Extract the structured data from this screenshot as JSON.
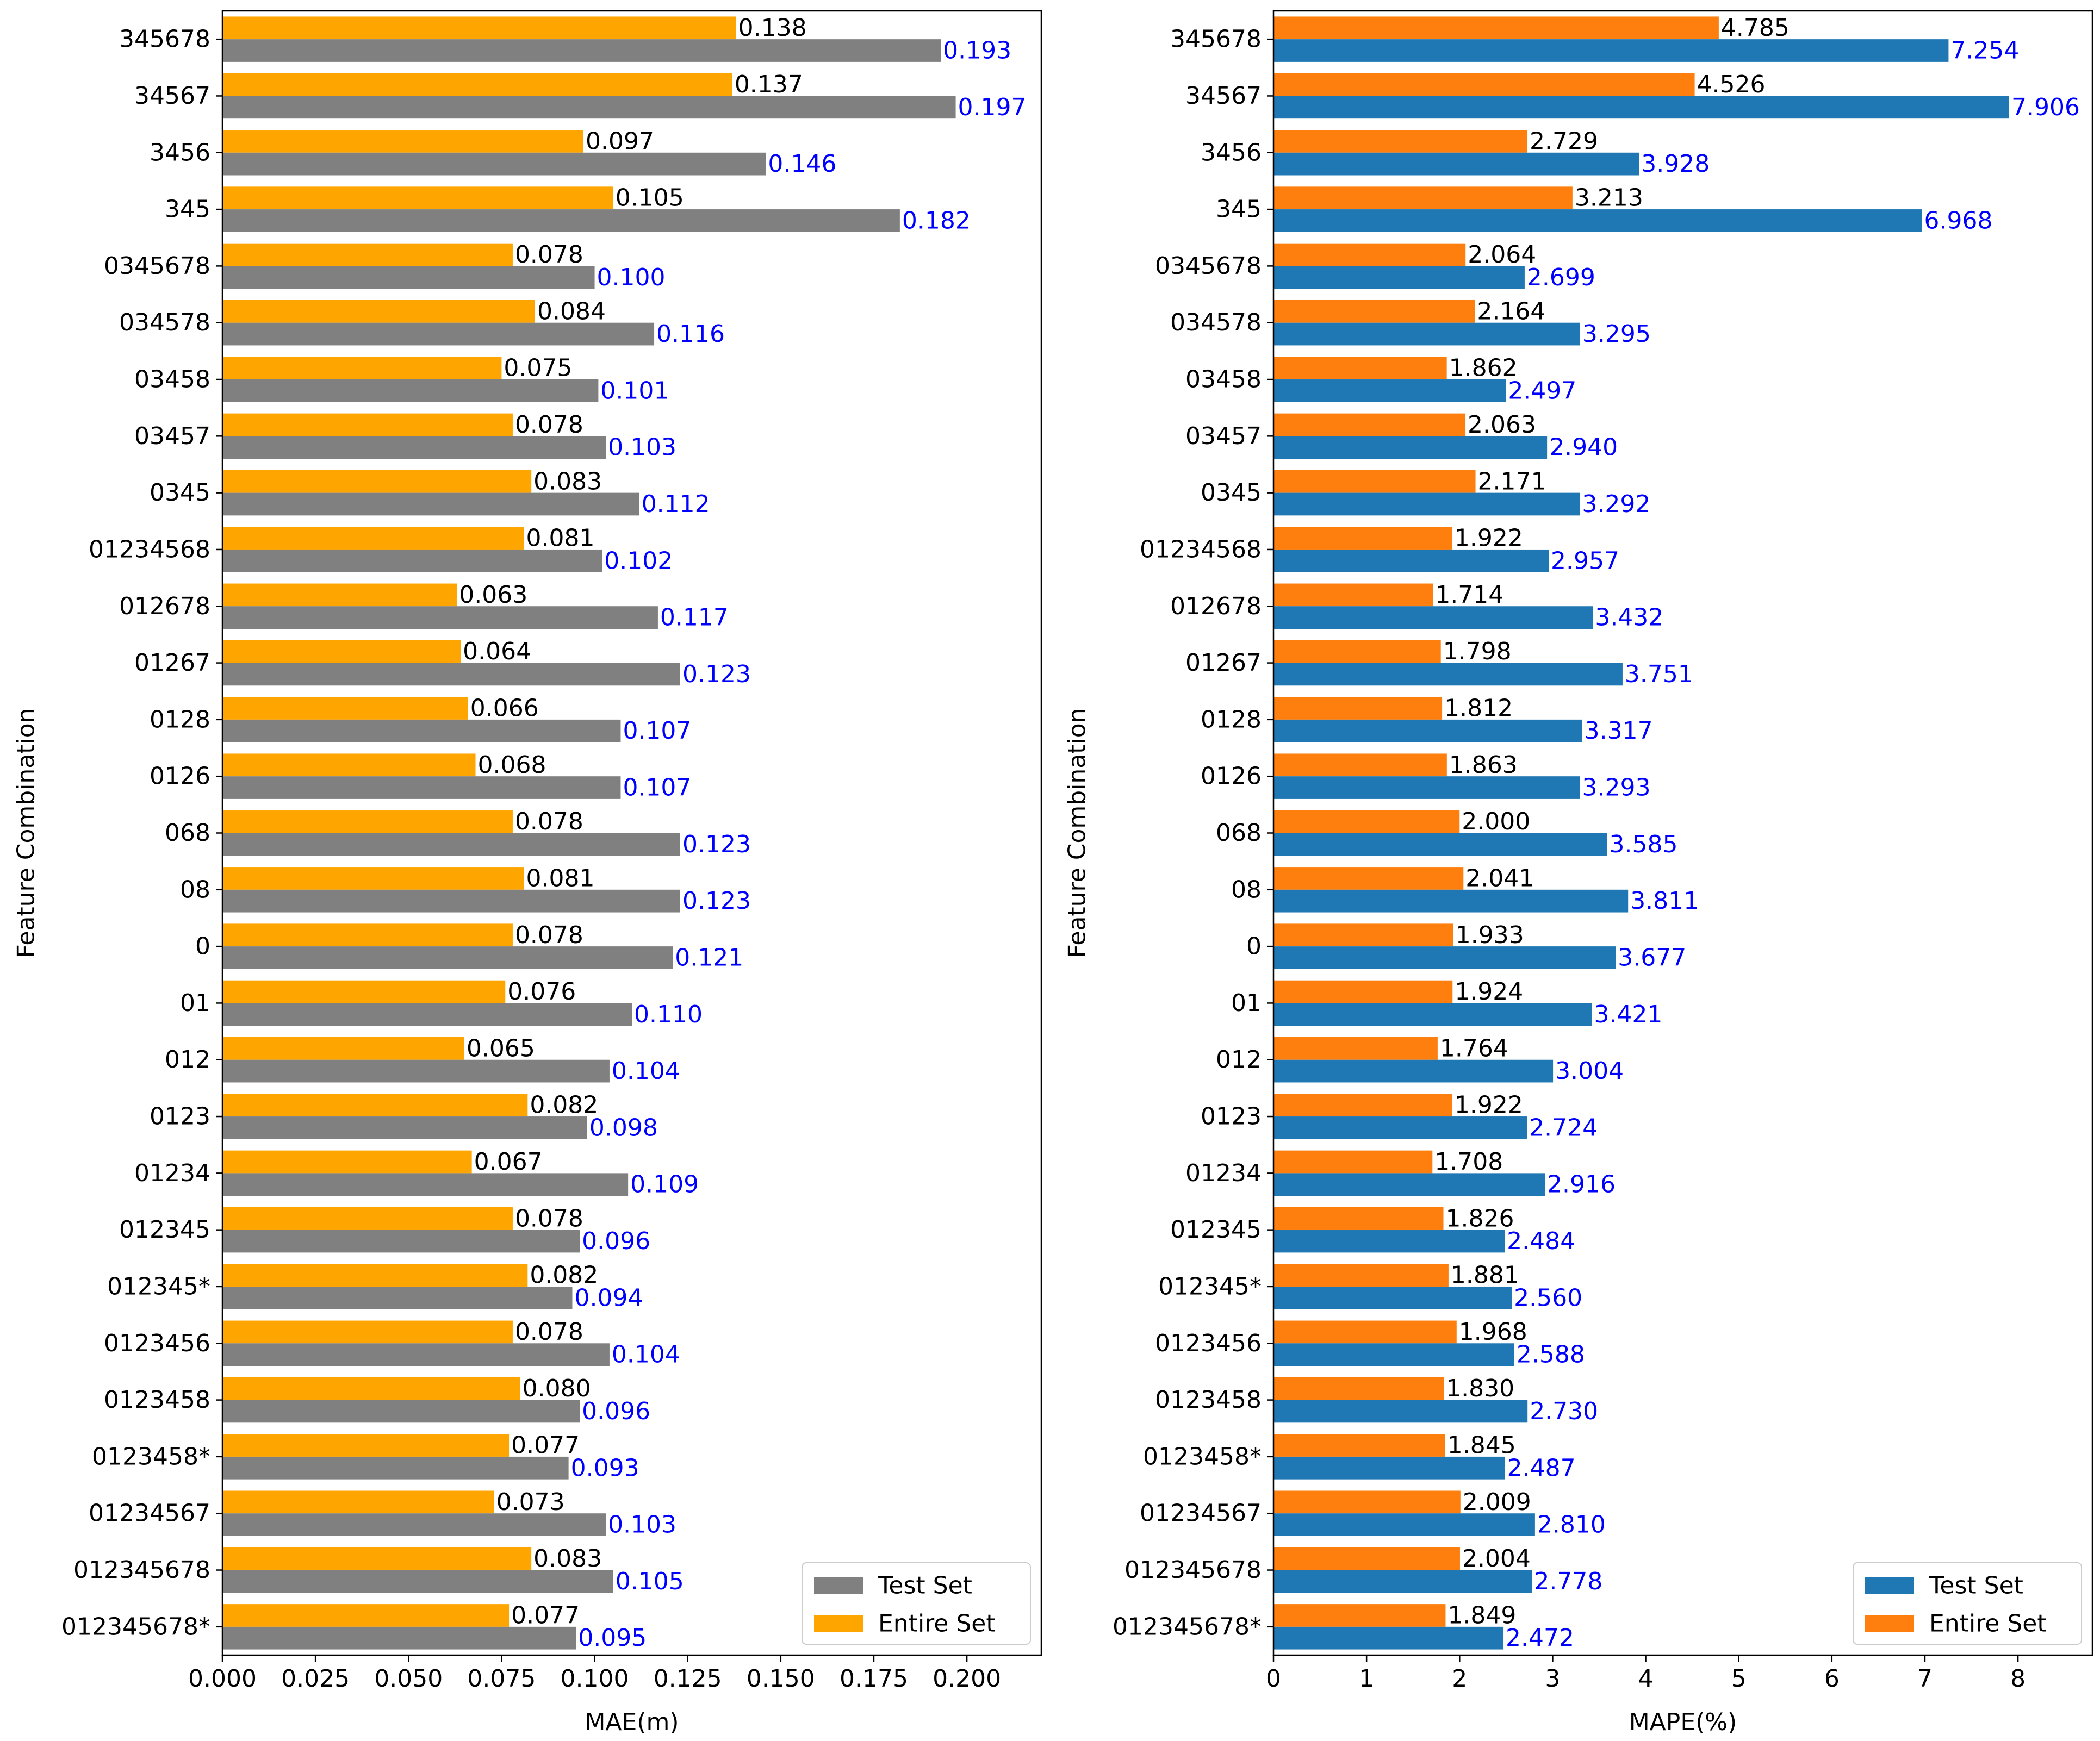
{
  "chart_data": [
    {
      "type": "bar",
      "orientation": "horizontal",
      "xlabel": "MAE(m)",
      "ylabel": "Feature Combination",
      "xlim": [
        0,
        0.22
      ],
      "xticks": [
        "0.000",
        "0.025",
        "0.050",
        "0.075",
        "0.100",
        "0.125",
        "0.150",
        "0.175",
        "0.200"
      ],
      "categories": [
        "345678",
        "34567",
        "3456",
        "345",
        "0345678",
        "034578",
        "03458",
        "03457",
        "0345",
        "01234568",
        "012678",
        "01267",
        "0128",
        "0126",
        "068",
        "08",
        "0",
        "01",
        "012",
        "0123",
        "01234",
        "012345",
        "012345*",
        "0123456",
        "0123458",
        "0123458*",
        "01234567",
        "012345678",
        "012345678*"
      ],
      "series": [
        {
          "name": "Test Set",
          "color": "#808080",
          "label_color": "#0000ff",
          "values": [
            0.193,
            0.197,
            0.146,
            0.182,
            0.1,
            0.116,
            0.101,
            0.103,
            0.112,
            0.102,
            0.117,
            0.123,
            0.107,
            0.107,
            0.123,
            0.123,
            0.121,
            0.11,
            0.104,
            0.098,
            0.109,
            0.096,
            0.094,
            0.104,
            0.096,
            0.093,
            0.103,
            0.105,
            0.095
          ],
          "labels": [
            "0.193",
            "0.197",
            "0.146",
            "0.182",
            "0.100",
            "0.116",
            "0.101",
            "0.103",
            "0.112",
            "0.102",
            "0.117",
            "0.123",
            "0.107",
            "0.107",
            "0.123",
            "0.123",
            "0.121",
            "0.110",
            "0.104",
            "0.098",
            "0.109",
            "0.096",
            "0.094",
            "0.104",
            "0.096",
            "0.093",
            "0.103",
            "0.105",
            "0.095"
          ]
        },
        {
          "name": "Entire Set",
          "color": "#ffa500",
          "label_color": "#000000",
          "values": [
            0.138,
            0.137,
            0.097,
            0.105,
            0.078,
            0.084,
            0.075,
            0.078,
            0.083,
            0.081,
            0.063,
            0.064,
            0.066,
            0.068,
            0.078,
            0.081,
            0.078,
            0.076,
            0.065,
            0.082,
            0.067,
            0.078,
            0.082,
            0.078,
            0.08,
            0.077,
            0.073,
            0.083,
            0.077
          ],
          "labels": [
            "0.138",
            "0.137",
            "0.097",
            "0.105",
            "0.078",
            "0.084",
            "0.075",
            "0.078",
            "0.083",
            "0.081",
            "0.063",
            "0.064",
            "0.066",
            "0.068",
            "0.078",
            "0.081",
            "0.078",
            "0.076",
            "0.065",
            "0.082",
            "0.067",
            "0.078",
            "0.082",
            "0.078",
            "0.080",
            "0.077",
            "0.073",
            "0.083",
            "0.077"
          ]
        }
      ],
      "legend": [
        "Test Set",
        "Entire Set"
      ],
      "legend_position": "lower-right"
    },
    {
      "type": "bar",
      "orientation": "horizontal",
      "xlabel": "MAPE(%)",
      "ylabel": "Feature Combination",
      "xlim": [
        0,
        8.8
      ],
      "xticks": [
        "0",
        "1",
        "2",
        "3",
        "4",
        "5",
        "6",
        "7",
        "8"
      ],
      "categories": [
        "345678",
        "34567",
        "3456",
        "345",
        "0345678",
        "034578",
        "03458",
        "03457",
        "0345",
        "01234568",
        "012678",
        "01267",
        "0128",
        "0126",
        "068",
        "08",
        "0",
        "01",
        "012",
        "0123",
        "01234",
        "012345",
        "012345*",
        "0123456",
        "0123458",
        "0123458*",
        "01234567",
        "012345678",
        "012345678*"
      ],
      "series": [
        {
          "name": "Test Set",
          "color": "#1f77b4",
          "label_color": "#0000ff",
          "values": [
            7.254,
            7.906,
            3.928,
            6.968,
            2.699,
            3.295,
            2.497,
            2.94,
            3.292,
            2.957,
            3.432,
            3.751,
            3.317,
            3.293,
            3.585,
            3.811,
            3.677,
            3.421,
            3.004,
            2.724,
            2.916,
            2.484,
            2.56,
            2.588,
            2.73,
            2.487,
            2.81,
            2.778,
            2.472
          ],
          "labels": [
            "7.254",
            "7.906",
            "3.928",
            "6.968",
            "2.699",
            "3.295",
            "2.497",
            "2.940",
            "3.292",
            "2.957",
            "3.432",
            "3.751",
            "3.317",
            "3.293",
            "3.585",
            "3.811",
            "3.677",
            "3.421",
            "3.004",
            "2.724",
            "2.916",
            "2.484",
            "2.560",
            "2.588",
            "2.730",
            "2.487",
            "2.810",
            "2.778",
            "2.472"
          ]
        },
        {
          "name": "Entire Set",
          "color": "#ff7f0e",
          "label_color": "#000000",
          "values": [
            4.785,
            4.526,
            2.729,
            3.213,
            2.064,
            2.164,
            1.862,
            2.063,
            2.171,
            1.922,
            1.714,
            1.798,
            1.812,
            1.863,
            2.0,
            2.041,
            1.933,
            1.924,
            1.764,
            1.922,
            1.708,
            1.826,
            1.881,
            1.968,
            1.83,
            1.845,
            2.009,
            2.004,
            1.849
          ],
          "labels": [
            "4.785",
            "4.526",
            "2.729",
            "3.213",
            "2.064",
            "2.164",
            "1.862",
            "2.063",
            "2.171",
            "1.922",
            "1.714",
            "1.798",
            "1.812",
            "1.863",
            "2.000",
            "2.041",
            "1.933",
            "1.924",
            "1.764",
            "1.922",
            "1.708",
            "1.826",
            "1.881",
            "1.968",
            "1.830",
            "1.845",
            "2.009",
            "2.004",
            "1.849"
          ]
        }
      ],
      "legend": [
        "Test Set",
        "Entire Set"
      ],
      "legend_position": "lower-right"
    }
  ]
}
